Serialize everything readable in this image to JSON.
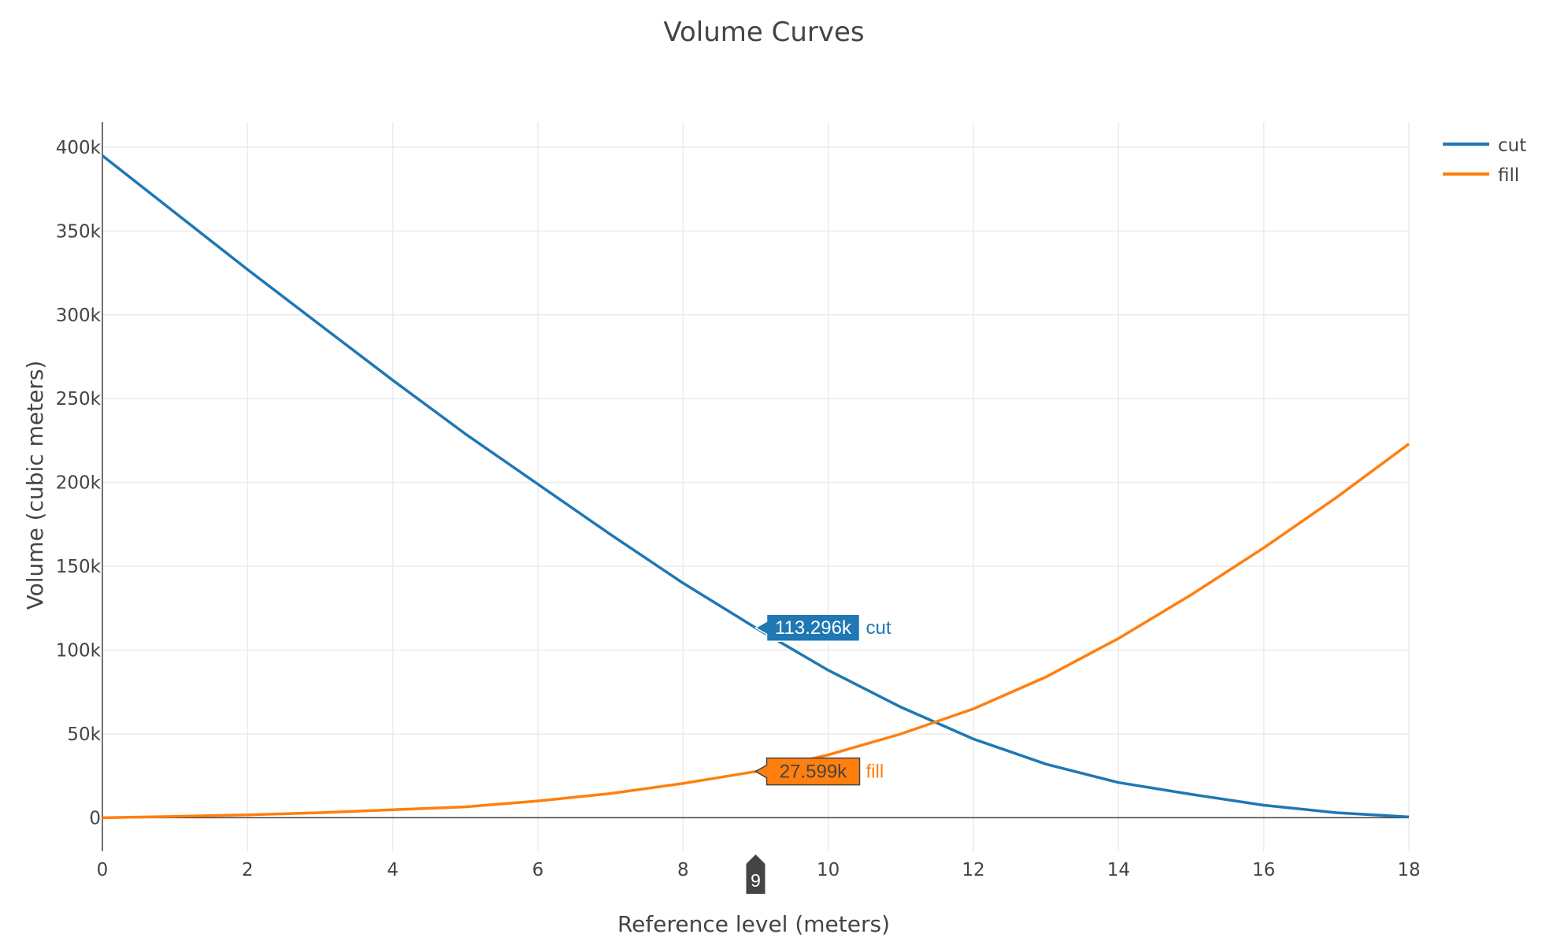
{
  "chart_data": {
    "type": "line",
    "title": "Volume Curves",
    "xlabel": "Reference level (meters)",
    "ylabel": "Volume (cubic meters)",
    "xlim": [
      0,
      18
    ],
    "ylim": [
      -20000,
      415000
    ],
    "xticks": [
      0,
      2,
      4,
      6,
      8,
      10,
      12,
      14,
      16,
      18
    ],
    "xtick_labels": [
      "0",
      "2",
      "4",
      "6",
      "8",
      "10",
      "12",
      "14",
      "16",
      "18"
    ],
    "yticks": [
      0,
      50000,
      100000,
      150000,
      200000,
      250000,
      300000,
      350000,
      400000
    ],
    "ytick_labels": [
      "0",
      "50k",
      "100k",
      "150k",
      "200k",
      "250k",
      "300k",
      "350k",
      "400k"
    ],
    "grid": true,
    "legend_position": "top-right",
    "x": [
      0,
      1,
      2,
      3,
      4,
      5,
      6,
      7,
      8,
      9,
      10,
      11,
      12,
      13,
      14,
      15,
      16,
      17,
      18
    ],
    "series": [
      {
        "name": "cut",
        "color": "#1f77b4",
        "values": [
          395000,
          361000,
          327000,
          294000,
          261000,
          229000,
          199000,
          169000,
          140000,
          113296,
          88000,
          66000,
          47000,
          32000,
          21000,
          14000,
          7500,
          3000,
          500
        ]
      },
      {
        "name": "fill",
        "color": "#ff7f0e",
        "values": [
          0,
          800,
          1700,
          3000,
          4800,
          6500,
          10000,
          14500,
          20500,
          27599,
          37500,
          50000,
          65000,
          84000,
          107000,
          133000,
          161000,
          191000,
          223000
        ]
      }
    ],
    "hover": {
      "x": 9,
      "x_label": "9",
      "labels": [
        {
          "series": "cut",
          "value_text": "113.296k",
          "name": "cut",
          "value": 113296
        },
        {
          "series": "fill",
          "value_text": "27.599k",
          "name": "fill",
          "value": 27599
        }
      ]
    }
  }
}
